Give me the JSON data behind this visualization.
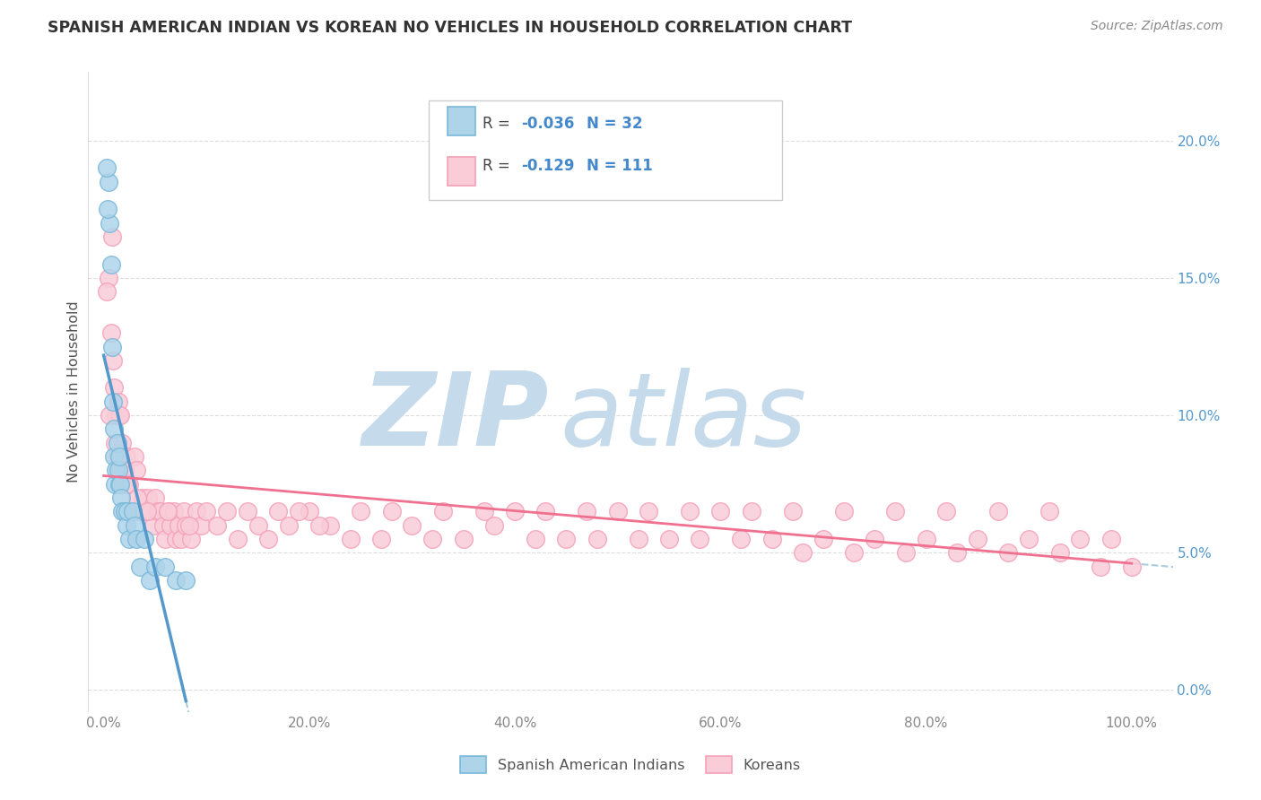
{
  "title": "SPANISH AMERICAN INDIAN VS KOREAN NO VEHICLES IN HOUSEHOLD CORRELATION CHART",
  "source": "Source: ZipAtlas.com",
  "ylabel": "No Vehicles in Household",
  "legend_label_1": "Spanish American Indians",
  "legend_label_2": "Koreans",
  "r1": "-0.036",
  "n1": "32",
  "r2": "-0.129",
  "n2": "111",
  "color_blue_edge": "#7ab8d9",
  "color_blue_fill": "#aed4ea",
  "color_pink_edge": "#f4a0b8",
  "color_pink_fill": "#f9ccd8",
  "color_line_blue": "#5599cc",
  "color_line_pink": "#f07090",
  "color_dashed": "#aaccdd",
  "watermark_zip": "#c5daea",
  "watermark_atlas": "#c5daea",
  "background_color": "#ffffff",
  "grid_color": "#dddddd",
  "tick_color": "#888888",
  "right_tick_color": "#5599cc",
  "title_color": "#333333",
  "source_color": "#888888",
  "blue_x": [
    0.5,
    0.6,
    0.7,
    0.8,
    0.9,
    1.0,
    1.0,
    1.1,
    1.2,
    1.3,
    1.4,
    1.5,
    1.5,
    1.6,
    1.7,
    1.8,
    2.0,
    2.2,
    2.3,
    2.5,
    2.8,
    3.0,
    3.2,
    3.5,
    4.0,
    4.5,
    5.0,
    6.0,
    7.0,
    8.0,
    0.3,
    0.4
  ],
  "blue_y": [
    0.185,
    0.17,
    0.155,
    0.125,
    0.105,
    0.095,
    0.085,
    0.075,
    0.08,
    0.09,
    0.08,
    0.085,
    0.075,
    0.075,
    0.07,
    0.065,
    0.065,
    0.06,
    0.065,
    0.055,
    0.065,
    0.06,
    0.055,
    0.045,
    0.055,
    0.04,
    0.045,
    0.045,
    0.04,
    0.04,
    0.19,
    0.175
  ],
  "pink_x": [
    0.5,
    0.7,
    0.8,
    0.9,
    1.0,
    1.2,
    1.3,
    1.4,
    1.5,
    1.6,
    1.7,
    1.8,
    2.0,
    2.2,
    2.5,
    2.8,
    3.0,
    3.2,
    3.5,
    3.8,
    4.0,
    4.3,
    4.5,
    4.8,
    5.0,
    5.3,
    5.5,
    5.8,
    6.0,
    6.3,
    6.5,
    6.8,
    7.0,
    7.3,
    7.5,
    7.8,
    8.0,
    8.5,
    9.0,
    9.5,
    10.0,
    11.0,
    12.0,
    13.0,
    14.0,
    15.0,
    16.0,
    17.0,
    18.0,
    20.0,
    22.0,
    24.0,
    25.0,
    27.0,
    28.0,
    30.0,
    32.0,
    33.0,
    35.0,
    37.0,
    38.0,
    40.0,
    42.0,
    43.0,
    45.0,
    47.0,
    48.0,
    50.0,
    52.0,
    53.0,
    55.0,
    57.0,
    58.0,
    60.0,
    62.0,
    63.0,
    65.0,
    67.0,
    68.0,
    70.0,
    72.0,
    73.0,
    75.0,
    77.0,
    78.0,
    80.0,
    82.0,
    83.0,
    85.0,
    87.0,
    88.0,
    90.0,
    92.0,
    93.0,
    95.0,
    97.0,
    98.0,
    100.0,
    0.3,
    0.6,
    1.1,
    1.9,
    2.3,
    3.3,
    4.2,
    6.2,
    8.3,
    19.0,
    21.0
  ],
  "pink_y": [
    0.15,
    0.13,
    0.165,
    0.12,
    0.11,
    0.1,
    0.085,
    0.105,
    0.1,
    0.1,
    0.075,
    0.09,
    0.08,
    0.085,
    0.075,
    0.065,
    0.085,
    0.08,
    0.065,
    0.07,
    0.065,
    0.07,
    0.065,
    0.06,
    0.07,
    0.065,
    0.065,
    0.06,
    0.055,
    0.065,
    0.06,
    0.065,
    0.055,
    0.06,
    0.055,
    0.065,
    0.06,
    0.055,
    0.065,
    0.06,
    0.065,
    0.06,
    0.065,
    0.055,
    0.065,
    0.06,
    0.055,
    0.065,
    0.06,
    0.065,
    0.06,
    0.055,
    0.065,
    0.055,
    0.065,
    0.06,
    0.055,
    0.065,
    0.055,
    0.065,
    0.06,
    0.065,
    0.055,
    0.065,
    0.055,
    0.065,
    0.055,
    0.065,
    0.055,
    0.065,
    0.055,
    0.065,
    0.055,
    0.065,
    0.055,
    0.065,
    0.055,
    0.065,
    0.05,
    0.055,
    0.065,
    0.05,
    0.055,
    0.065,
    0.05,
    0.055,
    0.065,
    0.05,
    0.055,
    0.065,
    0.05,
    0.055,
    0.065,
    0.05,
    0.055,
    0.045,
    0.055,
    0.045,
    0.145,
    0.1,
    0.09,
    0.08,
    0.075,
    0.07,
    0.065,
    0.065,
    0.06,
    0.065,
    0.06
  ],
  "xlim_min": -1.5,
  "xlim_max": 104.0,
  "ylim_min": -0.008,
  "ylim_max": 0.225
}
